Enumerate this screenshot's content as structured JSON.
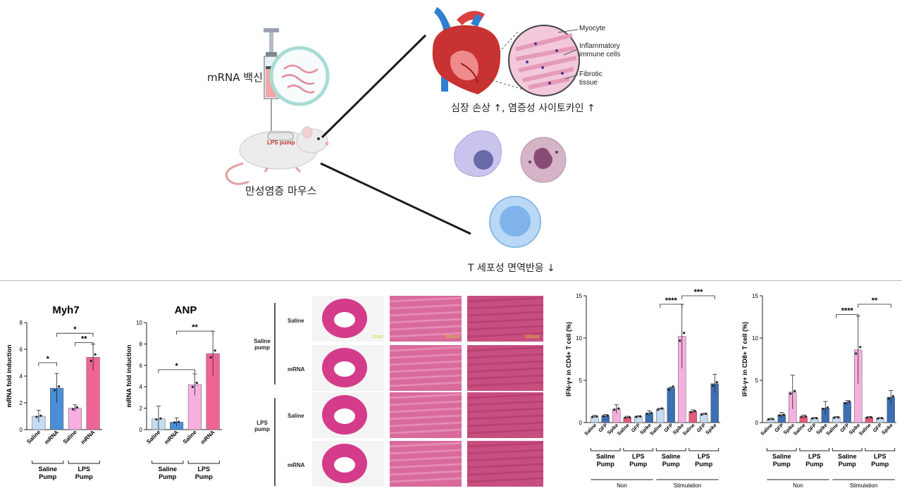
{
  "schematic": {
    "vaccine_label": "mRNA 백신",
    "pump_label": "LPS pump",
    "mouse_label": "만성염증 마우스",
    "heart_caption": "심장 손상 ↑, 염증성 사이토카인 ↑",
    "tcell_caption": "T 세포성 면역반응 ↓",
    "histology_labels": [
      "Myocyte",
      "Inflammatory",
      "immune cells",
      "Fibrotic",
      "tissue"
    ]
  },
  "histology": {
    "group_labels": [
      "Saline",
      "pump",
      "LPS",
      "pump"
    ],
    "row_labels": [
      "Saline",
      "mRNA",
      "Saline",
      "mRNA"
    ],
    "scale_labels": [
      "2mm",
      "500um",
      "100um"
    ]
  },
  "colors": {
    "saline_light": "#c5dcf2",
    "mrna_blue": "#4a8fd6",
    "lps_pink_light": "#f6b0e0",
    "lps_pink": "#f06496",
    "gfp_navy": "#3c6fb4",
    "red_pink": "#e85a7a"
  },
  "chart_data": [
    {
      "type": "bar",
      "title": "Myh7",
      "ylabel": "mRNA fold induction",
      "ylim": [
        0,
        8
      ],
      "yticks": [
        "0",
        "2",
        "4",
        "6",
        "8"
      ],
      "categories": [
        "Saline",
        "mRNA",
        "Saline",
        "mRNA"
      ],
      "values": [
        1.0,
        3.1,
        1.6,
        5.4
      ],
      "errors": [
        0.45,
        1.1,
        0.25,
        1.0
      ],
      "groups": [
        {
          "label": [
            "Saline",
            "Pump"
          ]
        },
        {
          "label": [
            "LPS",
            "Pump"
          ]
        }
      ],
      "significance": [
        "*",
        "*",
        "**"
      ]
    },
    {
      "type": "bar",
      "title": "ANP",
      "ylabel": "mRNA fold induction",
      "ylim": [
        0,
        10
      ],
      "yticks": [
        "0",
        "2",
        "4",
        "6",
        "8",
        "10"
      ],
      "categories": [
        "Saline",
        "mRNA",
        "Saline",
        "mRNA"
      ],
      "values": [
        1.0,
        0.7,
        4.2,
        7.1
      ],
      "errors": [
        1.2,
        0.4,
        1.0,
        2.1
      ],
      "groups": [
        {
          "label": [
            "Saline",
            "Pump"
          ]
        },
        {
          "label": [
            "LPS",
            "Pump"
          ]
        }
      ],
      "significance": [
        "*",
        "**"
      ]
    },
    {
      "type": "bar",
      "ylabel": "IFN-γ+ in CD4+ T cell (%)",
      "ylim": [
        0,
        15
      ],
      "yticks": [
        "0",
        "5",
        "10",
        "15"
      ],
      "categories": [
        "Saline",
        "GFP",
        "Spike",
        "Saline",
        "GFP",
        "Spike",
        "Saline",
        "GFP",
        "Spike",
        "Saline",
        "GFP",
        "Spike"
      ],
      "values": [
        0.7,
        0.8,
        1.6,
        0.6,
        0.7,
        1.1,
        1.6,
        4.1,
        10.2,
        1.3,
        1.0,
        4.6
      ],
      "errors": [
        0.15,
        0.15,
        0.5,
        0.15,
        0.1,
        0.3,
        0.1,
        0.1,
        3.8,
        0.2,
        0.1,
        1.1
      ],
      "groups": [
        {
          "label": [
            "Saline",
            "Pump"
          ]
        },
        {
          "label": [
            "LPS",
            "Pump"
          ]
        },
        {
          "label": [
            "Saline",
            "Pump"
          ]
        },
        {
          "label": [
            "LPS",
            "Pump"
          ]
        }
      ],
      "supergroups": [
        "Non",
        "Stimulation"
      ],
      "significance": [
        "****",
        "***"
      ]
    },
    {
      "type": "bar",
      "ylabel": "IFN-γ+ in CD8+ T cell (%)",
      "ylim": [
        0,
        15
      ],
      "yticks": [
        "0",
        "5",
        "10",
        "15"
      ],
      "categories": [
        "Saline",
        "GFP",
        "Spike",
        "Saline",
        "GFP",
        "Spike",
        "Saline",
        "GFP",
        "Spike",
        "Saline",
        "GFP",
        "Spike"
      ],
      "values": [
        0.4,
        0.9,
        3.6,
        0.7,
        0.5,
        1.7,
        0.6,
        2.4,
        8.6,
        0.6,
        0.5,
        3.0
      ],
      "errors": [
        0.1,
        0.3,
        2.0,
        0.2,
        0.1,
        0.8,
        0.1,
        0.2,
        4.0,
        0.1,
        0.1,
        0.8
      ],
      "groups": [
        {
          "label": [
            "Saline",
            "Pump"
          ]
        },
        {
          "label": [
            "LPS",
            "Pump"
          ]
        },
        {
          "label": [
            "Saline",
            "Pump"
          ]
        },
        {
          "label": [
            "LPS",
            "Pump"
          ]
        }
      ],
      "supergroups": [
        "Non",
        "Stimulation"
      ],
      "significance": [
        "****",
        "**"
      ]
    }
  ]
}
